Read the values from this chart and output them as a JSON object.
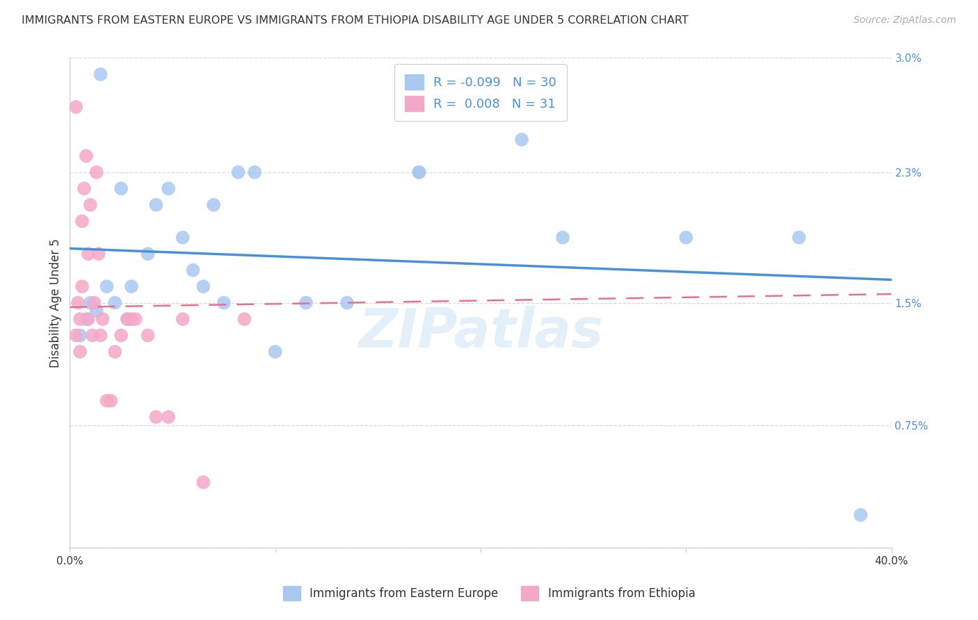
{
  "title": "IMMIGRANTS FROM EASTERN EUROPE VS IMMIGRANTS FROM ETHIOPIA DISABILITY AGE UNDER 5 CORRELATION CHART",
  "source": "Source: ZipAtlas.com",
  "ylabel": "Disability Age Under 5",
  "x_min": 0.0,
  "x_max": 0.4,
  "y_min": 0.0,
  "y_max": 0.03,
  "x_ticks": [
    0.0,
    0.1,
    0.2,
    0.3,
    0.4
  ],
  "x_tick_labels": [
    "0.0%",
    "",
    "",
    "",
    "40.0%"
  ],
  "y_ticks": [
    0.0,
    0.0075,
    0.015,
    0.023,
    0.03
  ],
  "y_tick_labels": [
    "",
    "0.75%",
    "1.5%",
    "2.3%",
    "3.0%"
  ],
  "legend_label1": "Immigrants from Eastern Europe",
  "legend_label2": "Immigrants from Ethiopia",
  "color_eastern": "#a8c8f0",
  "color_ethiopia": "#f4a8c8",
  "color_line_eastern": "#4a90d9",
  "color_line_ethiopia": "#e8708a",
  "R_eastern": -0.099,
  "N_eastern": 30,
  "R_ethiopia": 0.008,
  "N_ethiopia": 31,
  "eastern_x": [
    0.005,
    0.008,
    0.01,
    0.013,
    0.015,
    0.018,
    0.022,
    0.025,
    0.028,
    0.03,
    0.038,
    0.042,
    0.048,
    0.055,
    0.06,
    0.065,
    0.07,
    0.075,
    0.082,
    0.09,
    0.1,
    0.115,
    0.135,
    0.17,
    0.17,
    0.22,
    0.24,
    0.3,
    0.355,
    0.385
  ],
  "eastern_y": [
    0.013,
    0.014,
    0.015,
    0.0145,
    0.029,
    0.016,
    0.015,
    0.022,
    0.014,
    0.016,
    0.018,
    0.021,
    0.022,
    0.019,
    0.017,
    0.016,
    0.021,
    0.015,
    0.023,
    0.023,
    0.012,
    0.015,
    0.015,
    0.023,
    0.023,
    0.025,
    0.019,
    0.019,
    0.019,
    0.002
  ],
  "ethiopia_x": [
    0.003,
    0.003,
    0.004,
    0.005,
    0.005,
    0.006,
    0.006,
    0.007,
    0.008,
    0.009,
    0.009,
    0.01,
    0.011,
    0.012,
    0.013,
    0.014,
    0.015,
    0.016,
    0.018,
    0.02,
    0.022,
    0.025,
    0.028,
    0.03,
    0.032,
    0.038,
    0.042,
    0.048,
    0.055,
    0.065,
    0.085
  ],
  "ethiopia_y": [
    0.027,
    0.013,
    0.015,
    0.012,
    0.014,
    0.016,
    0.02,
    0.022,
    0.024,
    0.014,
    0.018,
    0.021,
    0.013,
    0.015,
    0.023,
    0.018,
    0.013,
    0.014,
    0.009,
    0.009,
    0.012,
    0.013,
    0.014,
    0.014,
    0.014,
    0.013,
    0.008,
    0.008,
    0.014,
    0.004,
    0.014
  ],
  "watermark": "ZIPatlas",
  "background_color": "#ffffff",
  "grid_color": "#d8d8d8"
}
